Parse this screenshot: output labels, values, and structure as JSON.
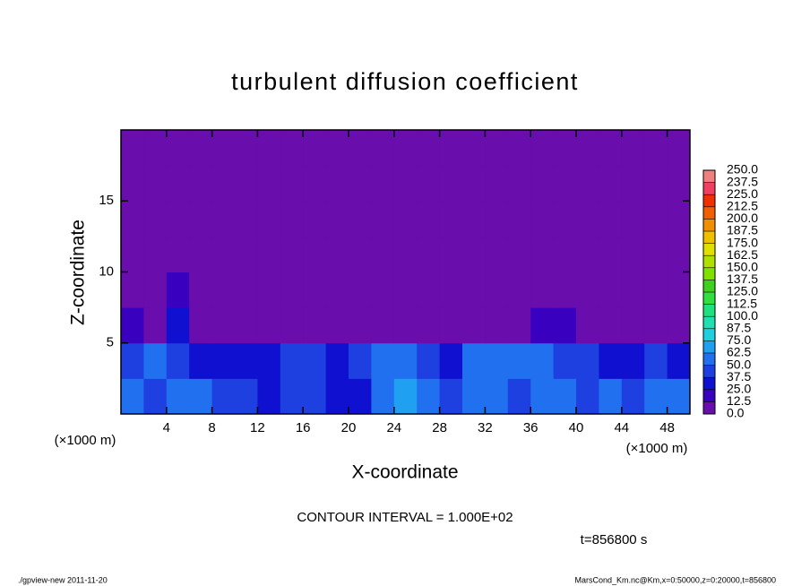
{
  "chart_data": {
    "type": "heatmap",
    "title": "turbulent diffusion coefficient",
    "xlabel": "X-coordinate",
    "ylabel": "Z-coordinate",
    "xunit": "(×1000 m)",
    "xlim": [
      0,
      50
    ],
    "ylim": [
      0,
      20
    ],
    "xticks": [
      4,
      8,
      12,
      16,
      20,
      24,
      28,
      32,
      36,
      40,
      44,
      48
    ],
    "yticks": [
      5,
      10,
      15
    ],
    "x_bins": [
      0,
      2,
      4,
      6,
      8,
      10,
      12,
      14,
      16,
      18,
      20,
      22,
      24,
      26,
      28,
      30,
      32,
      34,
      36,
      38,
      40,
      42,
      44,
      46,
      48,
      50
    ],
    "z_bins": [
      0,
      2.5,
      5,
      7.5,
      10,
      12.5,
      15,
      17.5,
      20
    ],
    "values": [
      [
        60,
        45,
        55,
        50,
        45,
        40,
        35,
        45,
        40,
        30,
        25,
        55,
        65,
        50,
        45,
        55,
        60,
        40,
        55,
        50,
        45,
        55,
        45,
        50,
        55
      ],
      [
        40,
        55,
        45,
        35,
        30,
        25,
        30,
        40,
        45,
        35,
        40,
        60,
        55,
        45,
        30,
        50,
        55,
        60,
        55,
        45,
        40,
        35,
        30,
        40,
        35
      ],
      [
        15,
        10,
        30,
        8,
        5,
        3,
        3,
        3,
        3,
        3,
        3,
        3,
        3,
        3,
        3,
        3,
        3,
        10,
        20,
        15,
        8,
        5,
        5,
        5,
        8
      ],
      [
        3,
        2,
        20,
        2,
        2,
        2,
        10,
        2,
        2,
        2,
        2,
        2,
        2,
        2,
        2,
        2,
        2,
        2,
        2,
        2,
        2,
        2,
        2,
        2,
        2
      ],
      [
        0,
        0,
        0,
        0,
        0,
        0,
        0,
        0,
        0,
        0,
        0,
        0,
        0,
        0,
        0,
        0,
        0,
        0,
        0,
        0,
        0,
        0,
        0,
        0,
        0
      ],
      [
        0,
        0,
        0,
        0,
        0,
        0,
        0,
        0,
        0,
        0,
        0,
        0,
        0,
        0,
        0,
        0,
        0,
        0,
        0,
        0,
        0,
        0,
        0,
        0,
        0
      ],
      [
        0,
        0,
        0,
        0,
        0,
        0,
        0,
        0,
        0,
        0,
        0,
        0,
        0,
        0,
        0,
        0,
        0,
        0,
        0,
        0,
        0,
        0,
        0,
        0,
        0
      ],
      [
        0,
        0,
        0,
        0,
        0,
        0,
        0,
        0,
        0,
        0,
        0,
        0,
        0,
        0,
        0,
        0,
        0,
        0,
        0,
        0,
        0,
        0,
        0,
        0,
        0
      ]
    ],
    "levels": [
      {
        "value": 0,
        "label": "0.0"
      },
      {
        "value": 12.5,
        "label": "12.5"
      },
      {
        "value": 25,
        "label": "25.0"
      },
      {
        "value": 37.5,
        "label": "37.5"
      },
      {
        "value": 50,
        "label": "50.0"
      },
      {
        "value": 62.5,
        "label": "62.5"
      },
      {
        "value": 75,
        "label": "75.0"
      },
      {
        "value": 87.5,
        "label": "87.5"
      },
      {
        "value": 100,
        "label": "100.0"
      },
      {
        "value": 112.5,
        "label": "112.5"
      },
      {
        "value": 125,
        "label": "125.0"
      },
      {
        "value": 137.5,
        "label": "137.5"
      },
      {
        "value": 150,
        "label": "150.0"
      },
      {
        "value": 162.5,
        "label": "162.5"
      },
      {
        "value": 175,
        "label": "175.0"
      },
      {
        "value": 187.5,
        "label": "187.5"
      },
      {
        "value": 200,
        "label": "200.0"
      },
      {
        "value": 212.5,
        "label": "212.5"
      },
      {
        "value": 225,
        "label": "225.0"
      },
      {
        "value": 237.5,
        "label": "237.5"
      },
      {
        "value": 250,
        "label": "250.0"
      }
    ],
    "colors": [
      "#6a0dad",
      "#3a00c0",
      "#1010d0",
      "#1e40e0",
      "#2070f0",
      "#20a0f0",
      "#20d0e0",
      "#20e0b0",
      "#20e080",
      "#30e040",
      "#40d020",
      "#80e000",
      "#b0e000",
      "#e0e000",
      "#f0c000",
      "#f09000",
      "#f06000",
      "#f03000",
      "#f04060",
      "#f08080"
    ],
    "contour_interval": "CONTOUR INTERVAL = 1.000E+02",
    "time": "t=856800 s",
    "footer_left": "./gpview-new  2011-11-20",
    "footer_right": "MarsCond_Km.nc@Km,x=0:50000,z=0:20000,t=856800"
  }
}
